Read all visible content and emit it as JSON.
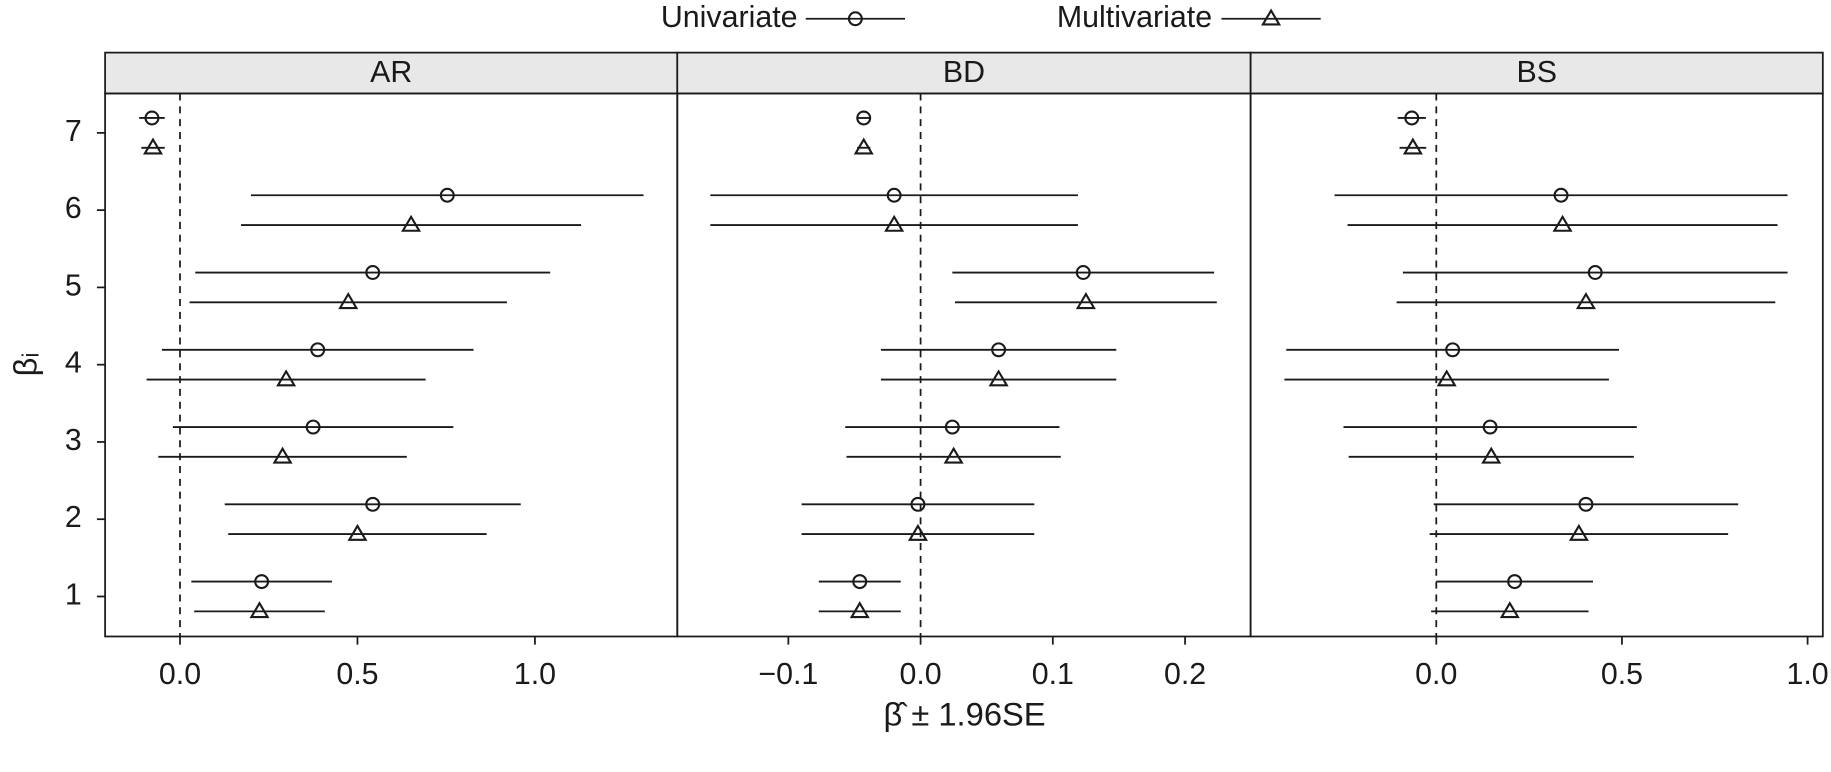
{
  "chart_data": {
    "type": "dotplot",
    "xlabel": "β̂ ± 1.96SE",
    "ylabel": "βᵢ",
    "categories": [
      "1",
      "2",
      "3",
      "4",
      "5",
      "6",
      "7"
    ],
    "series": [
      {
        "name": "Univariate",
        "marker": "circle",
        "color": "#1a1a1a"
      },
      {
        "name": "Multivariate",
        "marker": "triangle",
        "color": "#1a1a1a"
      }
    ],
    "reference_x": 0,
    "panels": [
      {
        "title": "AR",
        "xlim": [
          -0.211,
          1.401
        ],
        "xticks": [
          {
            "value": 0,
            "label": "0.0"
          },
          {
            "value": 0.5,
            "label": "0.5"
          },
          {
            "value": 1,
            "label": "1.0"
          }
        ],
        "values": [
          [
            0.23,
            0.543,
            0.375,
            0.388,
            0.543,
            0.753,
            -0.079
          ],
          [
            0.224,
            0.5,
            0.289,
            0.299,
            0.474,
            0.651,
            -0.076
          ]
        ],
        "errors": [
          [
            0.198,
            0.417,
            0.395,
            0.439,
            0.5,
            0.553,
            0.036
          ],
          [
            0.184,
            0.364,
            0.35,
            0.393,
            0.447,
            0.479,
            0.033
          ]
        ]
      },
      {
        "title": "BD",
        "xlim": [
          -0.184,
          0.2496
        ],
        "xticks": [
          {
            "value": -0.1,
            "label": "−0.1"
          },
          {
            "value": 0,
            "label": "0.0"
          },
          {
            "value": 0.1,
            "label": "0.1"
          },
          {
            "value": 0.2,
            "label": "0.2"
          }
        ],
        "values": [
          [
            -0.046,
            -0.002,
            0.024,
            0.059,
            0.123,
            -0.02,
            -0.043
          ],
          [
            -0.046,
            -0.002,
            0.025,
            0.059,
            0.125,
            -0.02,
            -0.043
          ]
        ],
        "errors": [
          [
            0.031,
            0.088,
            0.081,
            0.089,
            0.099,
            0.139,
            0.005
          ],
          [
            0.031,
            0.088,
            0.081,
            0.089,
            0.099,
            0.139,
            0.005
          ]
        ]
      },
      {
        "title": "BS",
        "xlim": [
          -0.5,
          1.041
        ],
        "xticks": [
          {
            "value": 0,
            "label": "0.0"
          },
          {
            "value": 0.5,
            "label": "0.5"
          },
          {
            "value": 1,
            "label": "1.0"
          }
        ],
        "values": [
          [
            0.211,
            0.403,
            0.145,
            0.044,
            0.428,
            0.336,
            -0.066
          ],
          [
            0.198,
            0.384,
            0.148,
            0.028,
            0.403,
            0.34,
            -0.063
          ]
        ],
        "errors": [
          [
            0.211,
            0.41,
            0.395,
            0.448,
            0.518,
            0.61,
            0.038
          ],
          [
            0.212,
            0.402,
            0.384,
            0.437,
            0.51,
            0.579,
            0.036
          ]
        ]
      }
    ]
  }
}
